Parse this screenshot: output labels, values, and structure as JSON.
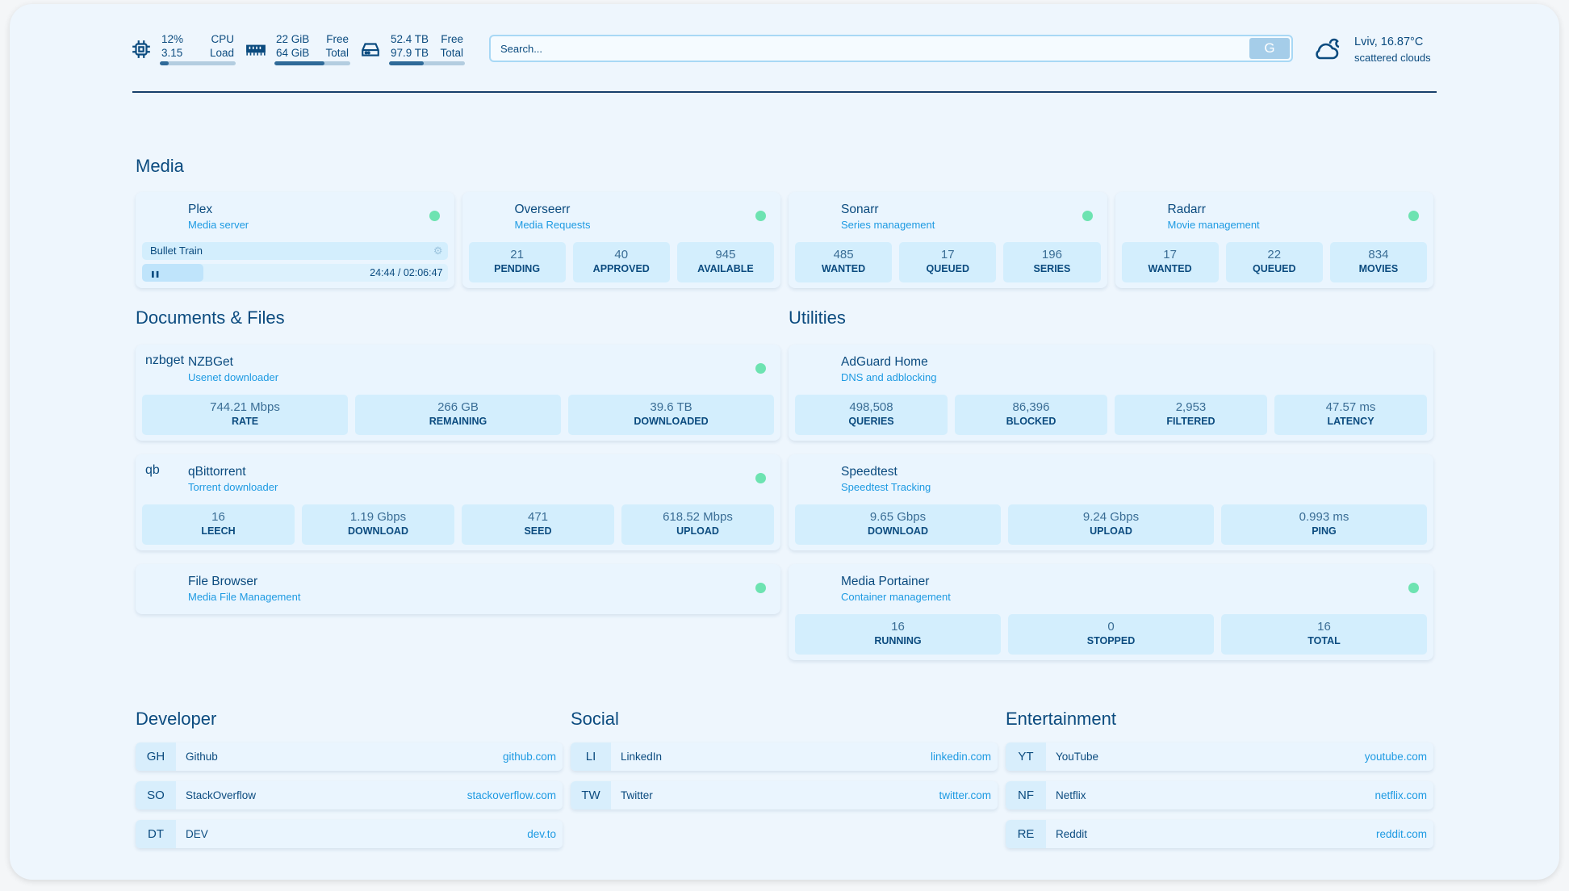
{
  "header": {
    "cpu": {
      "icon": "cpu-icon",
      "top_left": "12%",
      "top_right": "CPU",
      "bottom_left": "3.15",
      "bottom_right": "Load",
      "fill": 0.12
    },
    "memory": {
      "icon": "memory-icon",
      "top_left": "22 GiB",
      "top_right": "Free",
      "bottom_left": "64 GiB",
      "bottom_right": "Total",
      "fill": 0.66
    },
    "disk": {
      "icon": "disk-icon",
      "top_left": "52.4 TB",
      "top_right": "Free",
      "bottom_left": "97.9 TB",
      "bottom_right": "Total",
      "fill": 0.46
    },
    "search": {
      "placeholder": "Search...",
      "button": "G"
    },
    "weather": {
      "icon": "cloud-icon",
      "location_temp": "Lviv, 16.87°C",
      "condition": "scattered clouds"
    }
  },
  "sections": {
    "media": {
      "title": "Media",
      "cards": [
        {
          "name": "Plex",
          "sub": "Media server",
          "icon": "plex-icon",
          "status": true,
          "now_playing": {
            "title": "Bullet Train",
            "time": "24:44 / 02:06:47",
            "progress": 0.2
          }
        },
        {
          "name": "Overseerr",
          "sub": "Media Requests",
          "icon": "overseerr-icon",
          "status": true,
          "stats": [
            {
              "v": "21",
              "k": "PENDING"
            },
            {
              "v": "40",
              "k": "APPROVED"
            },
            {
              "v": "945",
              "k": "AVAILABLE"
            }
          ]
        },
        {
          "name": "Sonarr",
          "sub": "Series management",
          "icon": "sonarr-icon",
          "status": true,
          "stats": [
            {
              "v": "485",
              "k": "WANTED"
            },
            {
              "v": "17",
              "k": "QUEUED"
            },
            {
              "v": "196",
              "k": "SERIES"
            }
          ]
        },
        {
          "name": "Radarr",
          "sub": "Movie management",
          "icon": "radarr-icon",
          "status": true,
          "stats": [
            {
              "v": "17",
              "k": "WANTED"
            },
            {
              "v": "22",
              "k": "QUEUED"
            },
            {
              "v": "834",
              "k": "MOVIES"
            }
          ]
        }
      ]
    },
    "documents": {
      "title": "Documents & Files",
      "cards": [
        {
          "name": "NZBGet",
          "sub": "Usenet downloader",
          "icon": "nzbget-icon",
          "status": true,
          "stats": [
            {
              "v": "744.21 Mbps",
              "k": "RATE"
            },
            {
              "v": "266 GB",
              "k": "REMAINING"
            },
            {
              "v": "39.6 TB",
              "k": "DOWNLOADED"
            }
          ]
        },
        {
          "name": "qBittorrent",
          "sub": "Torrent downloader",
          "icon": "qbittorrent-icon",
          "status": true,
          "stats": [
            {
              "v": "16",
              "k": "LEECH"
            },
            {
              "v": "1.19 Gbps",
              "k": "DOWNLOAD"
            },
            {
              "v": "471",
              "k": "SEED"
            },
            {
              "v": "618.52 Mbps",
              "k": "UPLOAD"
            }
          ]
        },
        {
          "name": "File Browser",
          "sub": "Media File Management",
          "icon": "filebrowser-icon",
          "status": true
        }
      ]
    },
    "utilities": {
      "title": "Utilities",
      "cards": [
        {
          "name": "AdGuard Home",
          "sub": "DNS and adblocking",
          "icon": "adguard-icon",
          "status": false,
          "stats": [
            {
              "v": "498,508",
              "k": "QUERIES"
            },
            {
              "v": "86,396",
              "k": "BLOCKED"
            },
            {
              "v": "2,953",
              "k": "FILTERED"
            },
            {
              "v": "47.57 ms",
              "k": "LATENCY"
            }
          ]
        },
        {
          "name": "Speedtest",
          "sub": "Speedtest Tracking",
          "icon": "speedtest-icon",
          "status": false,
          "stats": [
            {
              "v": "9.65 Gbps",
              "k": "DOWNLOAD"
            },
            {
              "v": "9.24 Gbps",
              "k": "UPLOAD"
            },
            {
              "v": "0.993 ms",
              "k": "PING"
            }
          ]
        },
        {
          "name": "Media Portainer",
          "sub": "Container management",
          "icon": "portainer-icon",
          "status": true,
          "stats": [
            {
              "v": "16",
              "k": "RUNNING"
            },
            {
              "v": "0",
              "k": "STOPPED"
            },
            {
              "v": "16",
              "k": "TOTAL"
            }
          ]
        }
      ]
    },
    "developer": {
      "title": "Developer",
      "links": [
        {
          "abbr": "GH",
          "name": "Github",
          "url": "github.com"
        },
        {
          "abbr": "SO",
          "name": "StackOverflow",
          "url": "stackoverflow.com"
        },
        {
          "abbr": "DT",
          "name": "DEV",
          "url": "dev.to"
        }
      ]
    },
    "social": {
      "title": "Social",
      "links": [
        {
          "abbr": "LI",
          "name": "LinkedIn",
          "url": "linkedin.com"
        },
        {
          "abbr": "TW",
          "name": "Twitter",
          "url": "twitter.com"
        }
      ]
    },
    "entertainment": {
      "title": "Entertainment",
      "links": [
        {
          "abbr": "YT",
          "name": "YouTube",
          "url": "youtube.com"
        },
        {
          "abbr": "NF",
          "name": "Netflix",
          "url": "netflix.com"
        },
        {
          "abbr": "RE",
          "name": "Reddit",
          "url": "reddit.com"
        }
      ]
    }
  },
  "colors": {
    "accent": "#1d9ae2",
    "text": "#0b4b7f",
    "status_up": "#6de3b1",
    "stat_bg": "#d3eefd"
  }
}
